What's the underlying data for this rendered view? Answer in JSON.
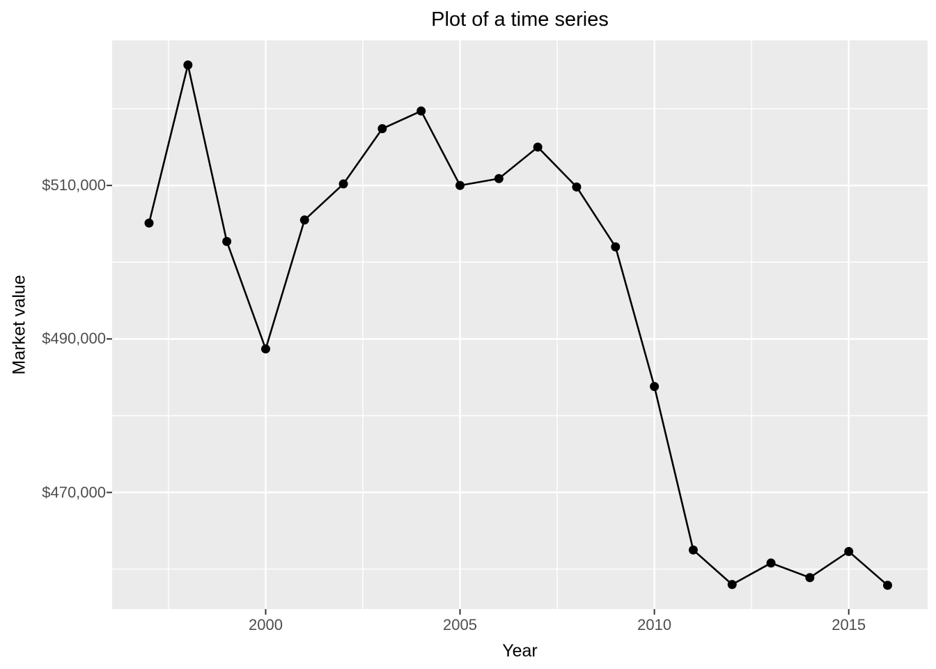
{
  "title": "Plot of a time series",
  "axes": {
    "x": {
      "label": "Year",
      "ticks": [
        2000,
        2005,
        2010,
        2015
      ],
      "tick_labels": [
        "2000",
        "2005",
        "2010",
        "2015"
      ],
      "minor": [
        1997.5,
        2002.5,
        2007.5,
        2012.5
      ]
    },
    "y": {
      "label": "Market value",
      "ticks": [
        510000,
        490000,
        470000
      ],
      "tick_labels": [
        "$510,000",
        "$490,000",
        "$470,000"
      ],
      "minor": [
        520000,
        500000,
        480000,
        460000
      ]
    }
  },
  "chart_data": {
    "type": "line",
    "title": "Plot of a time series",
    "xlabel": "Year",
    "ylabel": "Market value",
    "x": [
      1997,
      1998,
      1999,
      2000,
      2001,
      2002,
      2003,
      2004,
      2005,
      2006,
      2007,
      2008,
      2009,
      2010,
      2011,
      2012,
      2013,
      2014,
      2015,
      2016
    ],
    "y": [
      505100,
      525700,
      502700,
      488700,
      505500,
      510200,
      517400,
      519700,
      510000,
      510900,
      515000,
      509800,
      502000,
      483800,
      462500,
      458000,
      460800,
      458900,
      462300,
      457900
    ],
    "xlim": [
      1996.05,
      2017.03
    ],
    "ylim": [
      454800,
      528900
    ],
    "x_ticks": [
      2000,
      2005,
      2010,
      2015
    ],
    "y_ticks": [
      470000,
      490000,
      510000
    ],
    "y_tick_format": "$#,###",
    "grid": "major+minor",
    "legend": "none",
    "marker": "filled-circle",
    "style": "ggplot2-grey"
  },
  "colors": {
    "page_bg": "#FFFFFF",
    "panel_bg": "#EBEBEB",
    "grid": "#FFFFFF",
    "series": "#000000",
    "tick_mark": "#333333",
    "tick_label": "#4D4D4D",
    "axis_title": "#000000",
    "title": "#000000"
  }
}
